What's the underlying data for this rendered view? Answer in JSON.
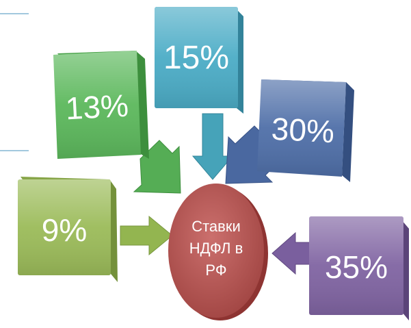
{
  "center": {
    "label_lines": [
      "Ставки",
      "НДФЛ в",
      "РФ"
    ],
    "color": "#c0504d"
  },
  "rates": [
    {
      "key": "13",
      "label": "13%",
      "color": "#5cb85c"
    },
    {
      "key": "15",
      "label": "15%",
      "color": "#4bacc6"
    },
    {
      "key": "30",
      "label": "30%",
      "color": "#4f6fa8"
    },
    {
      "key": "9",
      "label": "9%",
      "color": "#9bbb59"
    },
    {
      "key": "35",
      "label": "35%",
      "color": "#8064a2"
    }
  ]
}
